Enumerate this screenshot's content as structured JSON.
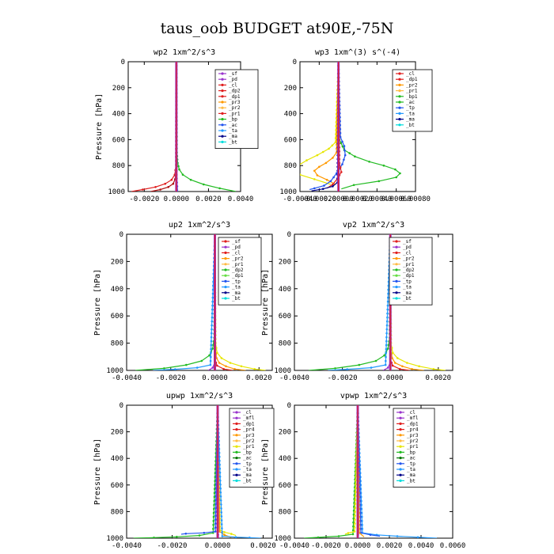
{
  "figure_title": "taus_oob  BUDGET at90E,-75N",
  "colors": {
    "black": "#000000",
    "purple": "#9933cc",
    "red": "#e01e1e",
    "dark_red": "#b01010",
    "orange": "#ff9900",
    "yellow": "#e6e600",
    "light_orange": "#ffbb44",
    "green": "#22bb22",
    "light_green": "#66dd44",
    "blue": "#2255ee",
    "light_blue": "#2299ff",
    "navy": "#000088",
    "cyan": "#00dddd",
    "dark_green": "#007700"
  },
  "chart_data": [
    {
      "type": "line",
      "title": "wp2  1xm^2/s^3",
      "ylabel": "Pressure [hPa]",
      "xlim": [
        -0.003,
        0.004
      ],
      "ylim": [
        1000,
        0
      ],
      "xticks": [
        "-0.0020",
        "0.0000",
        "0.0020",
        "0.0040"
      ],
      "xtick_values": [
        -0.002,
        0,
        0.002,
        0.004
      ],
      "yticks": [
        "0",
        "200",
        "400",
        "600",
        "800",
        "1000"
      ],
      "ytick_values": [
        0,
        200,
        400,
        600,
        800,
        1000
      ],
      "legend": [
        "_sf",
        "_pd",
        "_cl",
        "_dp2",
        "_dp1",
        "_pr3",
        "_pr2",
        "_pr1",
        "_bp",
        "_ac",
        "_ta",
        "_ma",
        "_bt"
      ],
      "legend_colors": [
        "#9933cc",
        "#9933cc",
        "#e01e1e",
        "#e01e1e",
        "#e01e1e",
        "#ff9900",
        "#ffbb44",
        "#e01e1e",
        "#22bb22",
        "#2255ee",
        "#2299ff",
        "#000088",
        "#00dddd"
      ],
      "series": [
        {
          "color": "#22bb22",
          "x": [
            0,
            3e-05,
            8e-05,
            0.00018,
            0.0004,
            0.0009,
            0.0017,
            0.0027,
            0.0037
          ],
          "y": [
            0,
            700,
            780,
            830,
            870,
            910,
            945,
            975,
            1000
          ]
        },
        {
          "color": "#e01e1e",
          "x": [
            0,
            -2e-05,
            -0.0001,
            -0.0003,
            -0.0007,
            -0.0013,
            -0.0021,
            -0.0028
          ],
          "y": [
            0,
            800,
            870,
            910,
            940,
            965,
            985,
            1000
          ]
        },
        {
          "color": "#b01010",
          "x": [
            0,
            -2e-05,
            -8e-05,
            -0.0002,
            -0.0005,
            -0.001,
            -0.0016
          ],
          "y": [
            0,
            850,
            905,
            940,
            965,
            985,
            1000
          ]
        },
        {
          "color": "#2255ee",
          "x": [
            0,
            2e-05,
            5e-05,
            8e-05
          ],
          "y": [
            0,
            900,
            960,
            1000
          ]
        },
        {
          "color": "#9933cc",
          "x": [
            0,
            0,
            2e-05,
            -2e-05
          ],
          "y": [
            0,
            900,
            960,
            1000
          ]
        }
      ]
    },
    {
      "type": "line",
      "title": "wp3  1xm^(3) s^(-4)",
      "ylabel": "",
      "xlim": [
        -0.0004,
        0.0008
      ],
      "ylim": [
        1000,
        0
      ],
      "xticks": [
        "-0.00040",
        "-0.00020",
        "0.00000",
        "0.00020",
        "0.00040",
        "0.00060",
        "0.00080"
      ],
      "xtick_values": [
        -0.0004,
        -0.0002,
        0,
        0.0002,
        0.0004,
        0.0006,
        0.0008
      ],
      "yticks": [
        "0",
        "200",
        "400",
        "600",
        "800",
        "1000"
      ],
      "ytick_values": [
        0,
        200,
        400,
        600,
        800,
        1000
      ],
      "legend": [
        "_cl",
        "_dp1",
        "_pr2",
        "_pr1",
        "_bp1",
        "_ac",
        "_tp",
        "_ta",
        "_ma",
        "_bt"
      ],
      "legend_colors": [
        "#e01e1e",
        "#e01e1e",
        "#ff9900",
        "#ffbb44",
        "#22bb22",
        "#22bb22",
        "#2255ee",
        "#2299ff",
        "#000088",
        "#00dddd"
      ],
      "series": [
        {
          "color": "#22bb22",
          "x": [
            0,
            1e-05,
            6e-05,
            0.00017,
            0.00032,
            0.00047,
            0.00059,
            0.00064,
            0.0006,
            0.00042,
            0.00016,
            3e-05
          ],
          "y": [
            0,
            600,
            680,
            730,
            770,
            800,
            830,
            860,
            890,
            920,
            950,
            980
          ]
        },
        {
          "color": "#e6e600",
          "x": [
            0,
            -3e-05,
            -0.0001,
            -0.00022,
            -0.00033,
            -0.00042,
            -0.00046,
            -0.0004,
            -0.00025,
            -8e-05
          ],
          "y": [
            0,
            620,
            670,
            720,
            760,
            800,
            835,
            870,
            905,
            945
          ]
        },
        {
          "color": "#ff9900",
          "x": [
            0,
            -2e-05,
            -6e-05,
            -0.00013,
            -0.0002,
            -0.00025,
            -0.00022,
            -0.00012,
            -3e-05
          ],
          "y": [
            0,
            700,
            740,
            780,
            810,
            840,
            875,
            910,
            945
          ]
        },
        {
          "color": "#2255ee",
          "x": [
            0,
            2e-05,
            6e-05,
            7e-05,
            4e-05,
            -2e-05,
            -8e-05,
            -0.00015,
            -0.00025,
            -0.0003
          ],
          "y": [
            0,
            580,
            650,
            720,
            790,
            860,
            920,
            955,
            975,
            985
          ]
        },
        {
          "color": "#e01e1e",
          "x": [
            0,
            1e-05,
            3e-05,
            -1e-05,
            -6e-05,
            -0.00012
          ],
          "y": [
            0,
            780,
            850,
            900,
            945,
            975
          ]
        },
        {
          "color": "#000088",
          "x": [
            0,
            -1e-05,
            -6e-05,
            -0.00016,
            -0.00028
          ],
          "y": [
            0,
            930,
            960,
            980,
            995
          ]
        }
      ]
    },
    {
      "type": "line",
      "title": "up2  1xm^2/s^3",
      "ylabel": "Pressure [hPa]",
      "xlim": [
        -0.004,
        0.0026
      ],
      "ylim": [
        1000,
        0
      ],
      "xticks": [
        "-0.0040",
        "-0.0020",
        "0.0000",
        "0.0020"
      ],
      "xtick_values": [
        -0.004,
        -0.002,
        0,
        0.002
      ],
      "yticks": [
        "0",
        "200",
        "400",
        "600",
        "800",
        "1000"
      ],
      "ytick_values": [
        0,
        200,
        400,
        600,
        800,
        1000
      ],
      "legend": [
        "_sf",
        "_pd",
        "_cl",
        "_pr2",
        "_pr1",
        "_dp2",
        "_dp1",
        "_tp",
        "_ta",
        "_ma",
        "_bt"
      ],
      "legend_colors": [
        "#e01e1e",
        "#9933cc",
        "#e01e1e",
        "#ff9900",
        "#ffbb44",
        "#22bb22",
        "#66dd44",
        "#2255ee",
        "#2299ff",
        "#000088",
        "#00dddd"
      ],
      "series": [
        {
          "color": "#22bb22",
          "x": [
            0,
            -3e-05,
            -0.0001,
            -0.00025,
            -0.0006,
            -0.0013,
            -0.0023,
            -0.0036
          ],
          "y": [
            0,
            760,
            840,
            890,
            930,
            960,
            985,
            1000
          ]
        },
        {
          "color": "#e6e600",
          "x": [
            0,
            3e-05,
            0.0001,
            0.0003,
            0.0007,
            0.0012,
            0.0018,
            0.0023
          ],
          "y": [
            0,
            800,
            870,
            910,
            945,
            970,
            990,
            1000
          ]
        },
        {
          "color": "#ff9900",
          "x": [
            0,
            2e-05,
            8e-05,
            0.0002,
            0.0005,
            0.0009,
            0.0014
          ],
          "y": [
            0,
            850,
            910,
            945,
            970,
            990,
            1000
          ]
        },
        {
          "color": "#2299ff",
          "x": [
            0,
            -0.0002,
            -0.0008,
            -0.0018,
            -0.0028
          ],
          "y": [
            0,
            960,
            980,
            992,
            1000
          ]
        },
        {
          "color": "#e01e1e",
          "x": [
            0,
            0,
            0.0001,
            0.0004,
            0.0008
          ],
          "y": [
            0,
            920,
            965,
            990,
            1000
          ]
        },
        {
          "color": "#9933cc",
          "x": [
            0,
            0,
            -0.0001,
            -0.0003
          ],
          "y": [
            0,
            940,
            980,
            1000
          ]
        }
      ]
    },
    {
      "type": "line",
      "title": "vp2  1xm^2/s^3",
      "ylabel": "Pressure [hPa]",
      "xlim": [
        -0.004,
        0.0026
      ],
      "ylim": [
        1000,
        0
      ],
      "xticks": [
        "-0.0040",
        "-0.0020",
        "0.0000",
        "0.0020"
      ],
      "xtick_values": [
        -0.004,
        -0.002,
        0,
        0.002
      ],
      "yticks": [
        "0",
        "200",
        "400",
        "600",
        "800",
        "1000"
      ],
      "ytick_values": [
        0,
        200,
        400,
        600,
        800,
        1000
      ],
      "legend": [
        "_sf",
        "_pd",
        "_cl",
        "_pr2",
        "_pr1",
        "_dp2",
        "_dp1",
        "_tp",
        "_ta",
        "_ma",
        "_bt"
      ],
      "legend_colors": [
        "#e01e1e",
        "#9933cc",
        "#e01e1e",
        "#ff9900",
        "#ffbb44",
        "#22bb22",
        "#66dd44",
        "#2255ee",
        "#2299ff",
        "#000088",
        "#00dddd"
      ],
      "series": [
        {
          "color": "#22bb22",
          "x": [
            0,
            -3e-05,
            -0.0001,
            -0.00025,
            -0.0006,
            -0.0013,
            -0.0023,
            -0.0034
          ],
          "y": [
            0,
            760,
            840,
            890,
            930,
            960,
            985,
            1000
          ]
        },
        {
          "color": "#e6e600",
          "x": [
            0,
            3e-05,
            0.0001,
            0.0003,
            0.0007,
            0.0012,
            0.0018,
            0.0023
          ],
          "y": [
            0,
            800,
            870,
            910,
            945,
            970,
            990,
            1000
          ]
        },
        {
          "color": "#ff9900",
          "x": [
            0,
            2e-05,
            8e-05,
            0.0002,
            0.0005,
            0.0009,
            0.0014
          ],
          "y": [
            0,
            850,
            910,
            945,
            970,
            990,
            1000
          ]
        },
        {
          "color": "#2299ff",
          "x": [
            0,
            -0.0002,
            -0.0008,
            -0.0018,
            -0.0026
          ],
          "y": [
            0,
            960,
            980,
            992,
            1000
          ]
        },
        {
          "color": "#e01e1e",
          "x": [
            0,
            0,
            0.0001,
            0.0004,
            0.0008
          ],
          "y": [
            0,
            920,
            965,
            990,
            1000
          ]
        },
        {
          "color": "#9933cc",
          "x": [
            0,
            0,
            -0.0001,
            -0.0003
          ],
          "y": [
            0,
            940,
            980,
            1000
          ]
        }
      ]
    },
    {
      "type": "line",
      "title": "upwp  1xm^2/s^3",
      "ylabel": "Pressure [hPa]",
      "xlim": [
        -0.004,
        0.0024
      ],
      "ylim": [
        1000,
        0
      ],
      "xticks": [
        "-0.0040",
        "-0.0020",
        "0.0000",
        "0.0020"
      ],
      "xtick_values": [
        -0.004,
        -0.002,
        0,
        0.002
      ],
      "yticks": [
        "0",
        "200",
        "400",
        "600",
        "800",
        "1000"
      ],
      "ytick_values": [
        0,
        200,
        400,
        600,
        800,
        1000
      ],
      "legend": [
        "_cl",
        "_mfl",
        "_dp1",
        "_pr4",
        "_pr3",
        "_pr2",
        "_pr1",
        "_bp",
        "_ac",
        "_tp",
        "_ta",
        "_ma",
        "_bt"
      ],
      "legend_colors": [
        "#9933cc",
        "#9933cc",
        "#e01e1e",
        "#e01e1e",
        "#ff9900",
        "#ffbb44",
        "#e6e600",
        "#22bb22",
        "#007700",
        "#2255ee",
        "#2299ff",
        "#000088",
        "#00dddd"
      ],
      "series": [
        {
          "color": "#22bb22",
          "x": [
            0,
            -0.0002,
            -0.0008,
            -0.0018,
            -0.0028,
            -0.0037
          ],
          "y": [
            0,
            960,
            980,
            990,
            996,
            1000
          ]
        },
        {
          "color": "#2255ee",
          "x": [
            0,
            -0.0001,
            -0.0006,
            -0.0014,
            -0.0016
          ],
          "y": [
            0,
            950,
            960,
            966,
            970
          ]
        },
        {
          "color": "#e6e600",
          "x": [
            0,
            0.0001,
            0.0003,
            0.0006,
            0.0008
          ],
          "y": [
            0,
            940,
            955,
            968,
            980
          ]
        },
        {
          "color": "#ff9900",
          "x": [
            0,
            8e-05,
            0.0003,
            0.0006
          ],
          "y": [
            0,
            950,
            975,
            995
          ]
        },
        {
          "color": "#2299ff",
          "x": [
            0,
            0.0002,
            0.0008,
            0.0014,
            0.0019
          ],
          "y": [
            0,
            985,
            992,
            996,
            1000
          ]
        },
        {
          "color": "#9933cc",
          "x": [
            0,
            0,
            5e-05
          ],
          "y": [
            0,
            950,
            1000
          ]
        }
      ]
    },
    {
      "type": "line",
      "title": "vpwp  1xm^2/s^3",
      "ylabel": "Pressure [hPa]",
      "xlim": [
        -0.004,
        0.006
      ],
      "ylim": [
        1000,
        0
      ],
      "xticks": [
        "-0.0040",
        "-0.0020",
        "0.0000",
        "0.0020",
        "0.0040",
        "0.0060"
      ],
      "xtick_values": [
        -0.004,
        -0.002,
        0,
        0.002,
        0.004,
        0.006
      ],
      "yticks": [
        "0",
        "200",
        "400",
        "600",
        "800",
        "1000"
      ],
      "ytick_values": [
        0,
        200,
        400,
        600,
        800,
        1000
      ],
      "legend": [
        "_cl",
        "_mfl",
        "_dp1",
        "_pr4",
        "_pr3",
        "_pr2",
        "_pr1",
        "_bp",
        "_ac",
        "_tp",
        "_ta",
        "_ma",
        "_bt"
      ],
      "legend_colors": [
        "#9933cc",
        "#9933cc",
        "#e01e1e",
        "#e01e1e",
        "#ff9900",
        "#ffbb44",
        "#e6e600",
        "#22bb22",
        "#007700",
        "#2255ee",
        "#2299ff",
        "#000088",
        "#00dddd"
      ],
      "series": [
        {
          "color": "#2299ff",
          "x": [
            0,
            0.0003,
            0.0012,
            0.0025,
            0.0038,
            0.005
          ],
          "y": [
            0,
            960,
            975,
            985,
            993,
            1000
          ]
        },
        {
          "color": "#22bb22",
          "x": [
            0,
            -0.0003,
            -0.0012,
            -0.0025,
            -0.0034
          ],
          "y": [
            0,
            970,
            985,
            994,
            1000
          ]
        },
        {
          "color": "#e6e600",
          "x": [
            0,
            -0.0002,
            -0.0006,
            -0.0008
          ],
          "y": [
            0,
            950,
            962,
            970
          ]
        },
        {
          "color": "#2255ee",
          "x": [
            0,
            0.0002,
            0.0008,
            0.0014
          ],
          "y": [
            0,
            960,
            975,
            985
          ]
        },
        {
          "color": "#ff9900",
          "x": [
            0,
            0.0001,
            0.0004
          ],
          "y": [
            0,
            960,
            990
          ]
        },
        {
          "color": "#9933cc",
          "x": [
            0,
            0,
            5e-05
          ],
          "y": [
            0,
            950,
            1000
          ]
        }
      ]
    }
  ]
}
